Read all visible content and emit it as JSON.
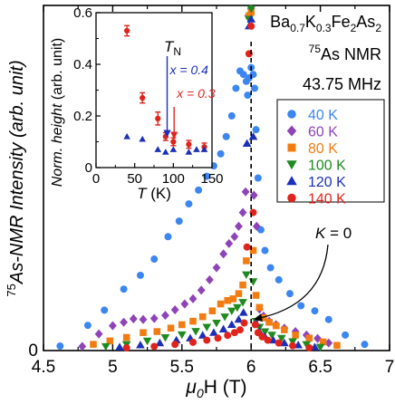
{
  "chart_data": [
    {
      "type": "scatter",
      "xlabel": {
        "pre": "μ",
        "sub": "0",
        "post": "H (T)"
      },
      "ylabel": {
        "sup": "75",
        "post": "As-NMR Intensity (arb. unit)"
      },
      "xlim": [
        4.5,
        7.0
      ],
      "ylim": [
        0,
        1.0
      ],
      "xticks": [
        "4.5",
        "5",
        "5.5",
        "6",
        "6.5",
        "7"
      ],
      "yticks": [
        "0"
      ],
      "title_lines": [
        [
          {
            "t": "Ba"
          },
          {
            "t": "0.7",
            "sub": true
          },
          {
            "t": "K"
          },
          {
            "t": "0.3",
            "sub": true
          },
          {
            "t": "Fe"
          },
          {
            "t": "2",
            "sub": true
          },
          {
            "t": "As"
          },
          {
            "t": "2",
            "sub": true
          }
        ],
        [
          {
            "t": "75",
            "sup": true
          },
          {
            "t": "As NMR"
          }
        ],
        [
          {
            "t": "43.75 MHz"
          }
        ]
      ],
      "annotation": {
        "pre": "K",
        "post": " = 0",
        "x": 6.0
      },
      "legend": {
        "position": "right",
        "entries": [
          "40 K",
          "60 K",
          "80 K",
          "100 K",
          "120 K",
          "140 K"
        ]
      },
      "series": [
        {
          "name": "40 K",
          "marker": "circle",
          "color": "#3b86f0",
          "x": [
            4.62,
            4.82,
            4.94,
            5.08,
            5.2,
            5.3,
            5.4,
            5.48,
            5.55,
            5.62,
            5.68,
            5.73,
            5.78,
            5.82,
            5.86,
            5.89,
            5.92,
            5.945,
            5.965,
            5.975,
            5.985,
            6.0,
            6.015,
            6.025,
            6.035,
            6.05,
            6.07,
            6.1,
            6.14,
            6.2,
            6.28,
            6.36,
            6.46,
            6.56,
            6.68,
            6.82
          ],
          "y": [
            0.013,
            0.073,
            0.117,
            0.178,
            0.218,
            0.265,
            0.33,
            0.375,
            0.425,
            0.465,
            0.505,
            0.535,
            0.57,
            0.62,
            0.68,
            0.76,
            0.81,
            0.8,
            0.78,
            0.74,
            0.79,
            0.82,
            0.8,
            0.76,
            0.64,
            0.5,
            0.35,
            0.29,
            0.24,
            0.205,
            0.165,
            0.13,
            0.115,
            0.09,
            0.045,
            0.018
          ]
        },
        {
          "name": "60 K",
          "marker": "diamond",
          "color": "#8e44b8",
          "x": [
            4.78,
            4.9,
            5.0,
            5.08,
            5.15,
            5.22,
            5.3,
            5.38,
            5.45,
            5.52,
            5.58,
            5.64,
            5.7,
            5.75,
            5.8,
            5.84,
            5.88,
            5.91,
            5.94,
            5.96,
            5.98,
            6.0,
            6.02,
            6.04,
            6.06,
            6.09,
            6.13,
            6.18,
            6.24,
            6.32,
            6.4,
            6.48,
            6.56
          ],
          "y": [
            0.012,
            0.048,
            0.072,
            0.082,
            0.092,
            0.09,
            0.093,
            0.102,
            0.118,
            0.135,
            0.15,
            0.175,
            0.205,
            0.24,
            0.28,
            0.31,
            0.33,
            0.36,
            0.4,
            0.46,
            0.97,
            0.99,
            0.45,
            0.36,
            0.12,
            0.1,
            0.085,
            0.075,
            0.065,
            0.055,
            0.045,
            0.035,
            0.022
          ]
        },
        {
          "name": "80 K",
          "marker": "square",
          "color": "#f37c12",
          "x": [
            4.86,
            4.98,
            5.1,
            5.22,
            5.32,
            5.42,
            5.5,
            5.58,
            5.65,
            5.72,
            5.78,
            5.83,
            5.87,
            5.91,
            5.94,
            5.965,
            5.985,
            6.0,
            6.015,
            6.035,
            6.06,
            6.09,
            6.13,
            6.18,
            6.24,
            6.32,
            6.42,
            6.52,
            6.62
          ],
          "y": [
            0.018,
            0.028,
            0.038,
            0.052,
            0.055,
            0.065,
            0.075,
            0.085,
            0.098,
            0.115,
            0.135,
            0.145,
            0.15,
            0.165,
            0.19,
            0.26,
            0.97,
            0.98,
            0.29,
            0.16,
            0.125,
            0.095,
            0.082,
            0.072,
            0.06,
            0.045,
            0.036,
            0.025,
            0.015
          ]
        },
        {
          "name": "100 K",
          "marker": "tri-down",
          "color": "#1f8a1f",
          "x": [
            4.95,
            5.1,
            5.25,
            5.38,
            5.5,
            5.6,
            5.68,
            5.75,
            5.81,
            5.86,
            5.9,
            5.94,
            5.965,
            5.985,
            6.0,
            6.015,
            6.035,
            6.06,
            6.1,
            6.15,
            6.22,
            6.3,
            6.4,
            6.5
          ],
          "y": [
            0.012,
            0.018,
            0.028,
            0.038,
            0.046,
            0.056,
            0.068,
            0.08,
            0.098,
            0.115,
            0.125,
            0.14,
            0.22,
            0.96,
            0.99,
            0.2,
            0.085,
            0.068,
            0.055,
            0.045,
            0.036,
            0.026,
            0.018,
            0.01
          ]
        },
        {
          "name": "120 K",
          "marker": "tri-up",
          "color": "#1c2fb8",
          "x": [
            5.05,
            5.2,
            5.34,
            5.46,
            5.56,
            5.65,
            5.73,
            5.8,
            5.86,
            5.91,
            5.945,
            5.97,
            5.985,
            6.0,
            6.015,
            6.035,
            6.06,
            6.1,
            6.16,
            6.24,
            6.34,
            6.46
          ],
          "y": [
            0.01,
            0.016,
            0.022,
            0.03,
            0.036,
            0.044,
            0.052,
            0.062,
            0.075,
            0.09,
            0.11,
            0.6,
            0.94,
            0.96,
            0.62,
            0.08,
            0.055,
            0.04,
            0.03,
            0.022,
            0.016,
            0.01
          ]
        },
        {
          "name": "140 K",
          "marker": "circle",
          "color": "#e0241c",
          "x": [
            5.1,
            5.3,
            5.45,
            5.58,
            5.68,
            5.76,
            5.83,
            5.88,
            5.92,
            5.95,
            5.97,
            5.985,
            6.0,
            6.015,
            6.03,
            6.05,
            6.08,
            6.12,
            6.2,
            6.3,
            6.42
          ],
          "y": [
            0.008,
            0.012,
            0.018,
            0.024,
            0.03,
            0.036,
            0.044,
            0.052,
            0.06,
            0.08,
            0.3,
            0.86,
            0.94,
            0.4,
            0.075,
            0.052,
            0.04,
            0.03,
            0.022,
            0.014,
            0.008
          ]
        }
      ]
    },
    {
      "type": "scatter",
      "xlabel": {
        "pre": "T",
        "post": " (K)"
      },
      "ylabel": {
        "pre": "Norm. height",
        "post": " (arb. unit)"
      },
      "xlim": [
        0,
        150
      ],
      "ylim": [
        0,
        0.6
      ],
      "xticks": [
        "0",
        "50",
        "100",
        "150"
      ],
      "yticks": [
        "0",
        "0.2",
        "0.4",
        "0.6"
      ],
      "tn_label": {
        "pre": "T",
        "sub": "N"
      },
      "series": [
        {
          "name": "x = 0.3",
          "marker": "circle",
          "color": "#e0241c",
          "x": [
            40,
            60,
            80,
            90,
            100,
            120,
            140
          ],
          "y": [
            0.53,
            0.27,
            0.19,
            0.12,
            0.1,
            0.09,
            0.08
          ],
          "err": [
            0.02,
            0.02,
            0.025,
            0.015,
            0.015,
            0.015,
            0.015
          ]
        },
        {
          "name": "x = 0.4",
          "marker": "tri-up",
          "color": "#1c2fb8",
          "x": [
            40,
            60,
            80,
            90,
            100,
            120,
            130,
            140
          ],
          "y": [
            0.12,
            0.11,
            0.07,
            0.06,
            0.07,
            0.06,
            0.07,
            0.07
          ]
        }
      ],
      "arrows": [
        {
          "label": "x = 0.4",
          "color": "#1c2fb8",
          "x": 92
        },
        {
          "label": "x = 0.3",
          "color": "#e0241c",
          "x": 101
        }
      ]
    }
  ]
}
